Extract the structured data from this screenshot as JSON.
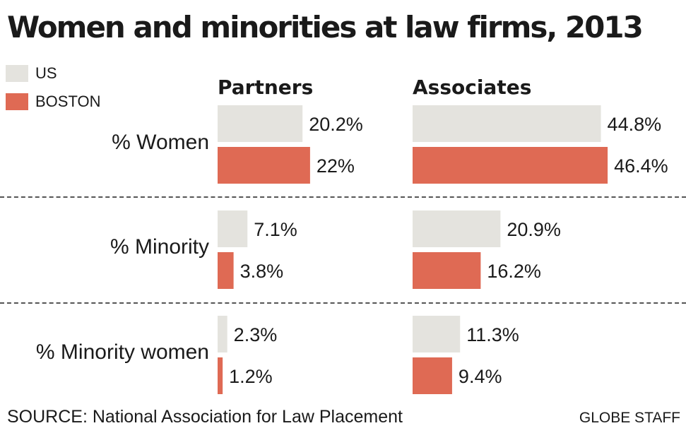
{
  "title": "Women and minorities at law firms, 2013",
  "legend": [
    {
      "label": "US",
      "color": "#e4e3de"
    },
    {
      "label": "BOSTON",
      "color": "#df6a54"
    }
  ],
  "source": "SOURCE: National Association for Law Placement",
  "credit": "GLOBE STAFF",
  "chart_data": {
    "type": "bar",
    "orientation": "horizontal",
    "title": "Women and minorities at law firms, 2013",
    "panels": [
      "Partners",
      "Associates"
    ],
    "categories": [
      "% Women",
      "% Minority",
      "% Minority women"
    ],
    "series": [
      {
        "name": "US",
        "color": "#e4e3de",
        "values": {
          "Partners": [
            20.2,
            7.1,
            2.3
          ],
          "Associates": [
            44.8,
            20.9,
            11.3
          ]
        },
        "labels": {
          "Partners": [
            "20.2%",
            "7.1%",
            "2.3%"
          ],
          "Associates": [
            "44.8%",
            "20.9%",
            "11.3%"
          ]
        }
      },
      {
        "name": "BOSTON",
        "color": "#df6a54",
        "values": {
          "Partners": [
            22,
            3.8,
            1.2
          ],
          "Associates": [
            46.4,
            16.2,
            9.4
          ]
        },
        "labels": {
          "Partners": [
            "22%",
            "3.8%",
            "1.2%"
          ],
          "Associates": [
            "46.4%",
            "16.2%",
            "9.4%"
          ]
        }
      }
    ],
    "unit": "%",
    "legend_position": "top-left",
    "grid": false
  }
}
